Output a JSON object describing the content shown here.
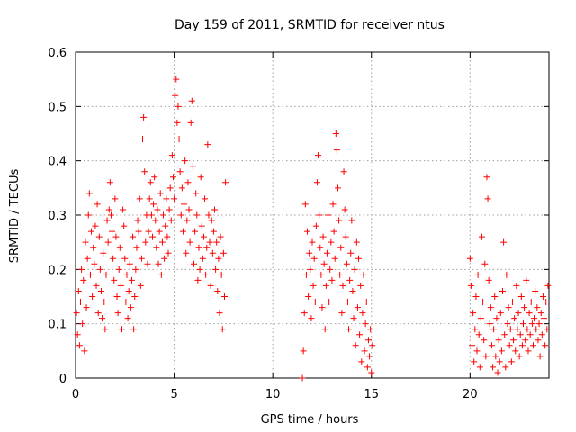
{
  "chart_data": {
    "type": "scatter",
    "title": "Day 159 of 2011, SRMTID for receiver ntus",
    "xlabel": "GPS time / hours",
    "ylabel": "SRMTID / TECUs",
    "xlim": [
      0,
      24
    ],
    "ylim": [
      0,
      0.6
    ],
    "xticks": [
      0,
      5,
      10,
      15,
      20
    ],
    "xtick_labels": [
      "0",
      "5",
      "10",
      "15",
      "20"
    ],
    "yticks": [
      0,
      0.1,
      0.2,
      0.3,
      0.4,
      0.5,
      0.6
    ],
    "ytick_labels": [
      "0",
      "0.1",
      "0.2",
      "0.3",
      "0.4",
      "0.5",
      "0.6"
    ],
    "grid": true,
    "marker": "plus",
    "marker_color": "#ff0000",
    "series": [
      {
        "name": "SRMTID",
        "points": [
          [
            0.05,
            0.12
          ],
          [
            0.1,
            0.08
          ],
          [
            0.15,
            0.16
          ],
          [
            0.2,
            0.06
          ],
          [
            0.25,
            0.14
          ],
          [
            0.3,
            0.2
          ],
          [
            0.35,
            0.1
          ],
          [
            0.4,
            0.18
          ],
          [
            0.45,
            0.05
          ],
          [
            0.5,
            0.25
          ],
          [
            0.55,
            0.13
          ],
          [
            0.6,
            0.22
          ],
          [
            0.65,
            0.3
          ],
          [
            0.7,
            0.34
          ],
          [
            0.75,
            0.19
          ],
          [
            0.8,
            0.27
          ],
          [
            0.85,
            0.15
          ],
          [
            0.9,
            0.24
          ],
          [
            0.95,
            0.21
          ],
          [
            1.0,
            0.28
          ],
          [
            1.05,
            0.17
          ],
          [
            1.1,
            0.32
          ],
          [
            1.15,
            0.12
          ],
          [
            1.2,
            0.26
          ],
          [
            1.25,
            0.2
          ],
          [
            1.3,
            0.16
          ],
          [
            1.35,
            0.11
          ],
          [
            1.4,
            0.23
          ],
          [
            1.45,
            0.14
          ],
          [
            1.5,
            0.09
          ],
          [
            1.55,
            0.19
          ],
          [
            1.6,
            0.29
          ],
          [
            1.65,
            0.25
          ],
          [
            1.7,
            0.31
          ],
          [
            1.75,
            0.36
          ],
          [
            1.8,
            0.3
          ],
          [
            1.85,
            0.27
          ],
          [
            1.9,
            0.22
          ],
          [
            1.95,
            0.18
          ],
          [
            2.0,
            0.33
          ],
          [
            2.05,
            0.26
          ],
          [
            2.1,
            0.15
          ],
          [
            2.15,
            0.12
          ],
          [
            2.2,
            0.2
          ],
          [
            2.25,
            0.24
          ],
          [
            2.3,
            0.17
          ],
          [
            2.35,
            0.09
          ],
          [
            2.4,
            0.31
          ],
          [
            2.45,
            0.28
          ],
          [
            2.5,
            0.22
          ],
          [
            2.55,
            0.14
          ],
          [
            2.6,
            0.19
          ],
          [
            2.65,
            0.11
          ],
          [
            2.7,
            0.16
          ],
          [
            2.75,
            0.21
          ],
          [
            2.8,
            0.13
          ],
          [
            2.85,
            0.18
          ],
          [
            2.9,
            0.26
          ],
          [
            2.95,
            0.09
          ],
          [
            3.0,
            0.15
          ],
          [
            3.05,
            0.2
          ],
          [
            3.1,
            0.24
          ],
          [
            3.15,
            0.29
          ],
          [
            3.2,
            0.27
          ],
          [
            3.25,
            0.33
          ],
          [
            3.3,
            0.17
          ],
          [
            3.35,
            0.22
          ],
          [
            3.4,
            0.44
          ],
          [
            3.45,
            0.48
          ],
          [
            3.5,
            0.38
          ],
          [
            3.55,
            0.25
          ],
          [
            3.6,
            0.3
          ],
          [
            3.65,
            0.21
          ],
          [
            3.7,
            0.27
          ],
          [
            3.75,
            0.33
          ],
          [
            3.8,
            0.36
          ],
          [
            3.85,
            0.3
          ],
          [
            3.9,
            0.26
          ],
          [
            3.95,
            0.32
          ],
          [
            4.0,
            0.37
          ],
          [
            4.05,
            0.29
          ],
          [
            4.1,
            0.24
          ],
          [
            4.15,
            0.31
          ],
          [
            4.2,
            0.21
          ],
          [
            4.25,
            0.27
          ],
          [
            4.3,
            0.34
          ],
          [
            4.35,
            0.19
          ],
          [
            4.4,
            0.25
          ],
          [
            4.45,
            0.3
          ],
          [
            4.5,
            0.22
          ],
          [
            4.55,
            0.28
          ],
          [
            4.6,
            0.33
          ],
          [
            4.65,
            0.26
          ],
          [
            4.7,
            0.23
          ],
          [
            4.75,
            0.31
          ],
          [
            4.8,
            0.35
          ],
          [
            4.85,
            0.29
          ],
          [
            4.9,
            0.41
          ],
          [
            4.95,
            0.37
          ],
          [
            5.0,
            0.33
          ],
          [
            5.05,
            0.52
          ],
          [
            5.1,
            0.55
          ],
          [
            5.15,
            0.47
          ],
          [
            5.2,
            0.5
          ],
          [
            5.25,
            0.44
          ],
          [
            5.3,
            0.38
          ],
          [
            5.35,
            0.3
          ],
          [
            5.4,
            0.35
          ],
          [
            5.45,
            0.27
          ],
          [
            5.5,
            0.32
          ],
          [
            5.55,
            0.4
          ],
          [
            5.6,
            0.23
          ],
          [
            5.65,
            0.29
          ],
          [
            5.7,
            0.36
          ],
          [
            5.75,
            0.31
          ],
          [
            5.8,
            0.25
          ],
          [
            5.85,
            0.47
          ],
          [
            5.9,
            0.51
          ],
          [
            5.95,
            0.39
          ],
          [
            6.0,
            0.21
          ],
          [
            6.05,
            0.27
          ],
          [
            6.1,
            0.34
          ],
          [
            6.15,
            0.3
          ],
          [
            6.2,
            0.18
          ],
          [
            6.25,
            0.24
          ],
          [
            6.3,
            0.2
          ],
          [
            6.35,
            0.37
          ],
          [
            6.4,
            0.28
          ],
          [
            6.45,
            0.22
          ],
          [
            6.5,
            0.26
          ],
          [
            6.55,
            0.33
          ],
          [
            6.6,
            0.19
          ],
          [
            6.65,
            0.24
          ],
          [
            6.7,
            0.43
          ],
          [
            6.75,
            0.3
          ],
          [
            6.8,
            0.25
          ],
          [
            6.85,
            0.17
          ],
          [
            6.9,
            0.29
          ],
          [
            6.95,
            0.23
          ],
          [
            7.0,
            0.27
          ],
          [
            7.05,
            0.31
          ],
          [
            7.1,
            0.2
          ],
          [
            7.15,
            0.25
          ],
          [
            7.2,
            0.16
          ],
          [
            7.25,
            0.22
          ],
          [
            7.3,
            0.12
          ],
          [
            7.35,
            0.26
          ],
          [
            7.4,
            0.19
          ],
          [
            7.45,
            0.09
          ],
          [
            7.5,
            0.23
          ],
          [
            7.55,
            0.15
          ],
          [
            7.6,
            0.36
          ],
          [
            11.5,
            0.0
          ],
          [
            11.55,
            0.05
          ],
          [
            11.6,
            0.12
          ],
          [
            11.65,
            0.32
          ],
          [
            11.7,
            0.19
          ],
          [
            11.75,
            0.27
          ],
          [
            11.8,
            0.15
          ],
          [
            11.85,
            0.23
          ],
          [
            11.9,
            0.2
          ],
          [
            11.95,
            0.11
          ],
          [
            12.0,
            0.25
          ],
          [
            12.05,
            0.17
          ],
          [
            12.1,
            0.22
          ],
          [
            12.15,
            0.14
          ],
          [
            12.2,
            0.28
          ],
          [
            12.25,
            0.36
          ],
          [
            12.3,
            0.41
          ],
          [
            12.35,
            0.3
          ],
          [
            12.4,
            0.24
          ],
          [
            12.45,
            0.19
          ],
          [
            12.5,
            0.13
          ],
          [
            12.55,
            0.26
          ],
          [
            12.6,
            0.21
          ],
          [
            12.65,
            0.09
          ],
          [
            12.7,
            0.17
          ],
          [
            12.75,
            0.23
          ],
          [
            12.8,
            0.3
          ],
          [
            12.85,
            0.14
          ],
          [
            12.9,
            0.2
          ],
          [
            12.95,
            0.25
          ],
          [
            13.0,
            0.18
          ],
          [
            13.05,
            0.32
          ],
          [
            13.1,
            0.27
          ],
          [
            13.15,
            0.22
          ],
          [
            13.2,
            0.45
          ],
          [
            13.25,
            0.42
          ],
          [
            13.3,
            0.35
          ],
          [
            13.35,
            0.29
          ],
          [
            13.4,
            0.19
          ],
          [
            13.45,
            0.24
          ],
          [
            13.5,
            0.12
          ],
          [
            13.55,
            0.17
          ],
          [
            13.6,
            0.38
          ],
          [
            13.65,
            0.31
          ],
          [
            13.7,
            0.26
          ],
          [
            13.75,
            0.21
          ],
          [
            13.8,
            0.14
          ],
          [
            13.85,
            0.09
          ],
          [
            13.9,
            0.18
          ],
          [
            13.95,
            0.23
          ],
          [
            14.0,
            0.29
          ],
          [
            14.05,
            0.16
          ],
          [
            14.1,
            0.11
          ],
          [
            14.15,
            0.2
          ],
          [
            14.2,
            0.06
          ],
          [
            14.25,
            0.25
          ],
          [
            14.3,
            0.13
          ],
          [
            14.35,
            0.22
          ],
          [
            14.4,
            0.08
          ],
          [
            14.45,
            0.17
          ],
          [
            14.5,
            0.03
          ],
          [
            14.55,
            0.12
          ],
          [
            14.6,
            0.19
          ],
          [
            14.65,
            0.05
          ],
          [
            14.7,
            0.1
          ],
          [
            14.75,
            0.14
          ],
          [
            14.8,
            0.02
          ],
          [
            14.85,
            0.07
          ],
          [
            14.9,
            0.04
          ],
          [
            14.95,
            0.09
          ],
          [
            15.0,
            0.01
          ],
          [
            15.05,
            0.06
          ],
          [
            20.0,
            0.22
          ],
          [
            20.05,
            0.17
          ],
          [
            20.1,
            0.06
          ],
          [
            20.15,
            0.12
          ],
          [
            20.2,
            0.03
          ],
          [
            20.25,
            0.09
          ],
          [
            20.3,
            0.15
          ],
          [
            20.35,
            0.05
          ],
          [
            20.4,
            0.19
          ],
          [
            20.45,
            0.08
          ],
          [
            20.5,
            0.02
          ],
          [
            20.55,
            0.11
          ],
          [
            20.6,
            0.26
          ],
          [
            20.65,
            0.14
          ],
          [
            20.7,
            0.07
          ],
          [
            20.75,
            0.21
          ],
          [
            20.8,
            0.04
          ],
          [
            20.85,
            0.37
          ],
          [
            20.9,
            0.33
          ],
          [
            20.95,
            0.18
          ],
          [
            21.0,
            0.1
          ],
          [
            21.05,
            0.13
          ],
          [
            21.1,
            0.06
          ],
          [
            21.15,
            0.02
          ],
          [
            21.2,
            0.09
          ],
          [
            21.25,
            0.15
          ],
          [
            21.3,
            0.04
          ],
          [
            21.35,
            0.11
          ],
          [
            21.4,
            0.01
          ],
          [
            21.45,
            0.07
          ],
          [
            21.5,
            0.03
          ],
          [
            21.55,
            0.12
          ],
          [
            21.6,
            0.05
          ],
          [
            21.65,
            0.16
          ],
          [
            21.7,
            0.25
          ],
          [
            21.75,
            0.08
          ],
          [
            21.8,
            0.02
          ],
          [
            21.85,
            0.19
          ],
          [
            21.9,
            0.1
          ],
          [
            21.95,
            0.13
          ],
          [
            22.0,
            0.06
          ],
          [
            22.05,
            0.09
          ],
          [
            22.1,
            0.03
          ],
          [
            22.15,
            0.14
          ],
          [
            22.2,
            0.07
          ],
          [
            22.25,
            0.11
          ],
          [
            22.3,
            0.05
          ],
          [
            22.35,
            0.17
          ],
          [
            22.4,
            0.09
          ],
          [
            22.45,
            0.12
          ],
          [
            22.5,
            0.04
          ],
          [
            22.55,
            0.08
          ],
          [
            22.6,
            0.15
          ],
          [
            22.65,
            0.06
          ],
          [
            22.7,
            0.1
          ],
          [
            22.75,
            0.13
          ],
          [
            22.8,
            0.07
          ],
          [
            22.85,
            0.18
          ],
          [
            22.9,
            0.09
          ],
          [
            22.95,
            0.05
          ],
          [
            23.0,
            0.12
          ],
          [
            23.05,
            0.08
          ],
          [
            23.1,
            0.14
          ],
          [
            23.15,
            0.1
          ],
          [
            23.2,
            0.06
          ],
          [
            23.25,
            0.11
          ],
          [
            23.3,
            0.16
          ],
          [
            23.35,
            0.09
          ],
          [
            23.4,
            0.13
          ],
          [
            23.45,
            0.07
          ],
          [
            23.5,
            0.1
          ],
          [
            23.55,
            0.04
          ],
          [
            23.6,
            0.12
          ],
          [
            23.65,
            0.08
          ],
          [
            23.7,
            0.15
          ],
          [
            23.75,
            0.11
          ],
          [
            23.8,
            0.06
          ],
          [
            23.85,
            0.14
          ],
          [
            23.9,
            0.09
          ],
          [
            23.95,
            0.17
          ]
        ]
      }
    ]
  }
}
